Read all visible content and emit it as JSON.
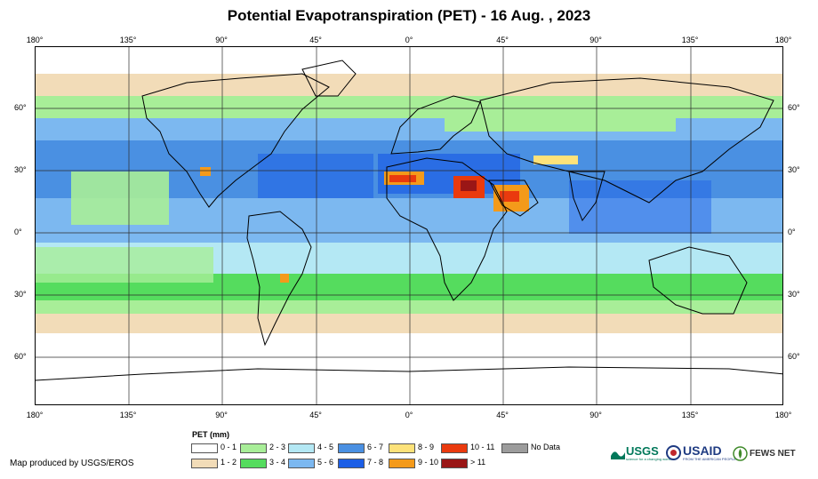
{
  "title": "Potential Evapotranspiration (PET) - 16 Aug. , 2023",
  "lon_labels": [
    "180°",
    "135°",
    "90°",
    "45°",
    "0°",
    "45°",
    "90°",
    "135°",
    "180°"
  ],
  "lat_labels_left": [
    "60°",
    "30°",
    "0°",
    "30°",
    "60°"
  ],
  "lat_labels_right": [
    "60°",
    "30°",
    "0°",
    "30°",
    "60°"
  ],
  "legend": {
    "title": "PET (mm)",
    "items": [
      {
        "label": "0 - 1",
        "color": "#ffffff"
      },
      {
        "label": "1 - 2",
        "color": "#f2dcb8"
      },
      {
        "label": "2 - 3",
        "color": "#a8ee98"
      },
      {
        "label": "3 - 4",
        "color": "#55dc5e"
      },
      {
        "label": "4 - 5",
        "color": "#b4e8f4"
      },
      {
        "label": "5 - 6",
        "color": "#7cb8f0"
      },
      {
        "label": "6 - 7",
        "color": "#4a90e2"
      },
      {
        "label": "7 - 8",
        "color": "#1c5ee6"
      },
      {
        "label": "8 - 9",
        "color": "#fde27a"
      },
      {
        "label": "9 - 10",
        "color": "#f49a1a"
      },
      {
        "label": "10 - 11",
        "color": "#ea3a0e"
      },
      {
        "label": "> 11",
        "color": "#9a1616"
      },
      {
        "label": "No Data",
        "color": "#9c9c9c"
      }
    ]
  },
  "credit": "Map produced by USGS/EROS",
  "logos": {
    "usgs": "USGS",
    "usgs_tagline": "science for a changing world",
    "usaid": "USAID",
    "usaid_tagline": "FROM THE AMERICAN PEOPLE",
    "fewsnet": "FEWS NET"
  }
}
